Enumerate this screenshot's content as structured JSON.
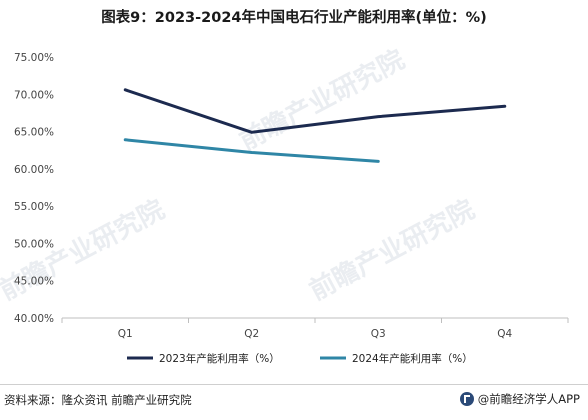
{
  "title": "图表9：2023-2024年中国电石行业产能利用率(单位：%)",
  "footer": {
    "source": "资料来源：隆众资讯 前瞻产业研究院",
    "brand": "@前瞻经济学人APP"
  },
  "watermark": "前瞻产业研究院",
  "chart_data": {
    "type": "line",
    "categories": [
      "Q1",
      "Q2",
      "Q3",
      "Q4"
    ],
    "ylim": [
      40,
      75
    ],
    "yticks": [
      "40.00%",
      "45.00%",
      "50.00%",
      "55.00%",
      "60.00%",
      "65.00%",
      "70.00%",
      "75.00%"
    ],
    "grid": false,
    "legend_position": "bottom",
    "series": [
      {
        "name": "2023年产能利用率（%）",
        "color": "#1c2a4f",
        "values": [
          70.6,
          64.9,
          67.0,
          68.4
        ]
      },
      {
        "name": "2024年产能利用率（%）",
        "color": "#2f86a6",
        "values": [
          63.9,
          62.2,
          61.0,
          null
        ]
      }
    ]
  }
}
